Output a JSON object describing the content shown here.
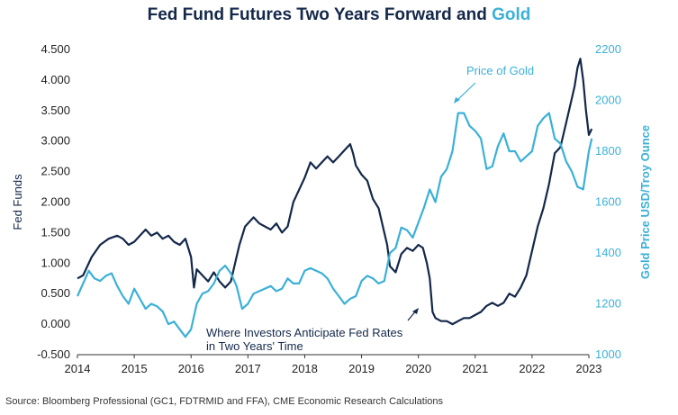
{
  "title": {
    "main": "Fed Fund Futures Two Years Forward and",
    "gold_word": "Gold"
  },
  "source": "Source: Bloomberg Professional (GC1, FDTRMID and FFA), CME Economic Research Calculations",
  "colors": {
    "fed": "#14284a",
    "gold": "#3bb0d8",
    "title": "#14284a"
  },
  "chart_data": {
    "type": "line",
    "title": "Fed Fund Futures Two Years Forward and Gold",
    "xlabel": "",
    "ylabel_left": "Fed Funds",
    "ylabel_right": "Gold Price USD/Troy Ounce",
    "xlim": [
      2014,
      2023
    ],
    "ylim_left": [
      -0.5,
      4.5
    ],
    "ylim_right": [
      1000,
      2200
    ],
    "x_ticks": [
      "2014",
      "2015",
      "2016",
      "2017",
      "2018",
      "2019",
      "2020",
      "2021",
      "2022",
      "2023"
    ],
    "y_left_ticks": [
      "4.500",
      "4.000",
      "3.500",
      "3.000",
      "2.500",
      "2.000",
      "1.500",
      "1.000",
      "0.500",
      "0.000",
      "-0.500"
    ],
    "y_right_ticks": [
      "2200",
      "2000",
      "1800",
      "1600",
      "1400",
      "1200",
      "1000"
    ],
    "grid": false,
    "annotations": {
      "gold": "Price of Gold",
      "fed_line1": "Where Investors Anticipate Fed Rates",
      "fed_line2": "in Two Years' Time"
    },
    "series": [
      {
        "name": "Where Investors Anticipate Fed Rates in Two Years' Time",
        "axis": "left",
        "x": [
          2014.0,
          2014.1,
          2014.25,
          2014.4,
          2014.55,
          2014.7,
          2014.8,
          2014.9,
          2015.0,
          2015.1,
          2015.2,
          2015.3,
          2015.4,
          2015.5,
          2015.6,
          2015.7,
          2015.8,
          2015.9,
          2016.0,
          2016.05,
          2016.1,
          2016.2,
          2016.3,
          2016.4,
          2016.5,
          2016.6,
          2016.7,
          2016.8,
          2016.85,
          2016.95,
          2017.1,
          2017.2,
          2017.3,
          2017.4,
          2017.5,
          2017.6,
          2017.7,
          2017.8,
          2017.9,
          2018.0,
          2018.1,
          2018.2,
          2018.3,
          2018.4,
          2018.5,
          2018.6,
          2018.7,
          2018.8,
          2018.85,
          2018.9,
          2019.0,
          2019.1,
          2019.2,
          2019.3,
          2019.4,
          2019.45,
          2019.5,
          2019.6,
          2019.7,
          2019.8,
          2019.9,
          2020.0,
          2020.08,
          2020.15,
          2020.2,
          2020.25,
          2020.3,
          2020.4,
          2020.5,
          2020.6,
          2020.7,
          2020.8,
          2020.9,
          2021.0,
          2021.1,
          2021.2,
          2021.3,
          2021.4,
          2021.5,
          2021.6,
          2021.7,
          2021.8,
          2021.9,
          2022.0,
          2022.1,
          2022.2,
          2022.3,
          2022.4,
          2022.5,
          2022.6,
          2022.7,
          2022.75,
          2022.8,
          2022.85,
          2022.9,
          2022.95,
          2023.0,
          2023.05
        ],
        "values": [
          0.75,
          0.8,
          1.1,
          1.3,
          1.4,
          1.45,
          1.4,
          1.3,
          1.35,
          1.45,
          1.55,
          1.45,
          1.5,
          1.4,
          1.45,
          1.35,
          1.3,
          1.4,
          1.1,
          0.6,
          0.9,
          0.8,
          0.7,
          0.85,
          0.7,
          0.6,
          0.7,
          1.1,
          1.3,
          1.6,
          1.75,
          1.65,
          1.6,
          1.55,
          1.65,
          1.5,
          1.6,
          2.0,
          2.2,
          2.4,
          2.65,
          2.55,
          2.65,
          2.75,
          2.65,
          2.75,
          2.85,
          2.95,
          2.8,
          2.6,
          2.45,
          2.35,
          2.05,
          1.9,
          1.5,
          1.3,
          0.95,
          0.85,
          1.15,
          1.25,
          1.2,
          1.3,
          1.25,
          1.0,
          0.75,
          0.2,
          0.1,
          0.05,
          0.05,
          0.0,
          0.05,
          0.1,
          0.1,
          0.15,
          0.2,
          0.3,
          0.35,
          0.3,
          0.35,
          0.5,
          0.45,
          0.6,
          0.8,
          1.2,
          1.6,
          1.9,
          2.3,
          2.8,
          2.9,
          3.3,
          3.7,
          3.9,
          4.2,
          4.35,
          4.0,
          3.5,
          3.1,
          3.2
        ]
      },
      {
        "name": "Price of Gold",
        "axis": "right",
        "x": [
          2014.0,
          2014.1,
          2014.2,
          2014.3,
          2014.4,
          2014.5,
          2014.6,
          2014.7,
          2014.8,
          2014.9,
          2015.0,
          2015.1,
          2015.2,
          2015.3,
          2015.4,
          2015.5,
          2015.6,
          2015.7,
          2015.8,
          2015.9,
          2016.0,
          2016.1,
          2016.2,
          2016.3,
          2016.4,
          2016.5,
          2016.6,
          2016.7,
          2016.8,
          2016.9,
          2017.0,
          2017.1,
          2017.2,
          2017.3,
          2017.4,
          2017.5,
          2017.6,
          2017.7,
          2017.8,
          2017.9,
          2018.0,
          2018.1,
          2018.2,
          2018.3,
          2018.4,
          2018.5,
          2018.6,
          2018.7,
          2018.8,
          2018.9,
          2019.0,
          2019.1,
          2019.2,
          2019.3,
          2019.4,
          2019.5,
          2019.6,
          2019.7,
          2019.8,
          2019.9,
          2020.0,
          2020.1,
          2020.2,
          2020.3,
          2020.4,
          2020.5,
          2020.6,
          2020.7,
          2020.8,
          2020.9,
          2021.0,
          2021.1,
          2021.2,
          2021.3,
          2021.4,
          2021.5,
          2021.6,
          2021.7,
          2021.8,
          2021.9,
          2022.0,
          2022.1,
          2022.2,
          2022.3,
          2022.4,
          2022.5,
          2022.6,
          2022.7,
          2022.8,
          2022.9,
          2023.0,
          2023.05
        ],
        "values": [
          1230,
          1280,
          1330,
          1300,
          1290,
          1310,
          1320,
          1270,
          1230,
          1200,
          1260,
          1220,
          1180,
          1200,
          1190,
          1170,
          1120,
          1130,
          1100,
          1070,
          1100,
          1200,
          1240,
          1250,
          1280,
          1330,
          1350,
          1320,
          1270,
          1180,
          1200,
          1240,
          1250,
          1260,
          1270,
          1250,
          1260,
          1300,
          1280,
          1280,
          1330,
          1340,
          1330,
          1320,
          1300,
          1260,
          1230,
          1200,
          1220,
          1230,
          1290,
          1310,
          1300,
          1280,
          1290,
          1400,
          1420,
          1500,
          1490,
          1460,
          1520,
          1580,
          1650,
          1600,
          1700,
          1730,
          1800,
          1950,
          1950,
          1900,
          1880,
          1850,
          1730,
          1740,
          1820,
          1870,
          1800,
          1800,
          1760,
          1780,
          1800,
          1900,
          1930,
          1950,
          1850,
          1830,
          1760,
          1720,
          1660,
          1650,
          1800,
          1850
        ]
      }
    ]
  }
}
